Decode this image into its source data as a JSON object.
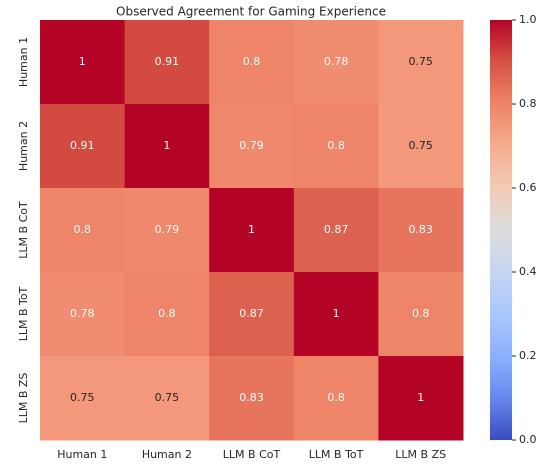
{
  "chart_data": {
    "type": "heatmap",
    "title": "Observed Agreement for Gaming Experience",
    "x_categories": [
      "Human 1",
      "Human 2",
      "LLM B CoT",
      "LLM B ToT",
      "LLM B ZS"
    ],
    "y_categories": [
      "Human 1",
      "Human 2",
      "LLM B CoT",
      "LLM B ToT",
      "LLM B ZS"
    ],
    "values": [
      [
        1,
        0.91,
        0.8,
        0.78,
        0.75
      ],
      [
        0.91,
        1,
        0.79,
        0.8,
        0.75
      ],
      [
        0.8,
        0.79,
        1,
        0.87,
        0.83
      ],
      [
        0.78,
        0.8,
        0.87,
        1,
        0.8
      ],
      [
        0.75,
        0.75,
        0.83,
        0.8,
        1
      ]
    ],
    "colormap": "coolwarm",
    "clim": [
      0,
      1
    ],
    "cticks": [
      {
        "value": 0,
        "label": "0.0"
      },
      0.2,
      0.4,
      0.6,
      0.8,
      {
        "value": 1,
        "label": "1.0"
      }
    ]
  }
}
